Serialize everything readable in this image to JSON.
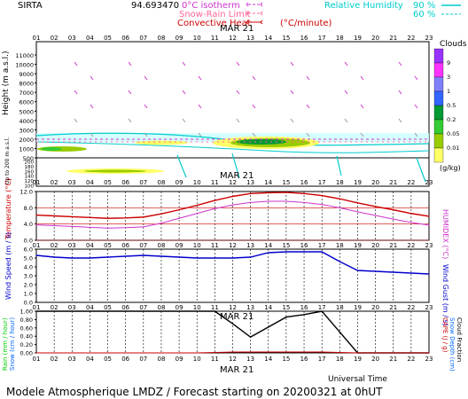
{
  "header": {
    "station": "SIRTA",
    "coords": "94.693470",
    "legend_0c": "0°C isotherm",
    "legend_snow": "Snow-Rain Limit",
    "legend_conv": "Convective Heat",
    "conv_unit": "(°C/minute)",
    "legend_rh": "Relative Humidity",
    "rh_90": "90 %",
    "rh_60": "60 %",
    "date": "MAR 21"
  },
  "hours": [
    "01",
    "02",
    "03",
    "04",
    "05",
    "06",
    "07",
    "08",
    "09",
    "10",
    "11",
    "12",
    "13",
    "14",
    "15",
    "16",
    "17",
    "18",
    "19",
    "20",
    "21",
    "22",
    "23"
  ],
  "top_panel": {
    "ylabel": "Height (m a.s.l.)",
    "ylabel_low": "Up to 200 m a.s.l.",
    "yticks": [
      "11000",
      "10000",
      "9000",
      "8000",
      "7000",
      "6000",
      "5000",
      "4000",
      "3000",
      "2000",
      "1000",
      "500",
      "200",
      "180",
      "160",
      "140",
      "120",
      "100"
    ],
    "clouds_title": "Clouds",
    "clouds_unit": "(g/kg)",
    "cloud_levels": [
      "9",
      "3",
      "1",
      "0.5",
      "0.2",
      "0.05",
      "0.01"
    ],
    "cloud_colors": [
      "#9933ff",
      "#ff33ff",
      "#8080ff",
      "#3366ff",
      "#009933",
      "#33cc33",
      "#99cc00",
      "#ffff66"
    ]
  },
  "chart_data": [
    {
      "type": "line",
      "title": "",
      "xlabel": "MAR 21",
      "ylabel": "Temperature (°C)",
      "ylabel_right": "HUMIDEX (°C)",
      "ylim": [
        0,
        12
      ],
      "yticks": [
        "12.0",
        "8.0",
        "4.0",
        "0.0"
      ],
      "x": [
        1,
        2,
        3,
        4,
        5,
        6,
        7,
        8,
        9,
        10,
        11,
        12,
        13,
        14,
        15,
        16,
        17,
        18,
        19,
        20,
        21,
        22,
        23
      ],
      "series": [
        {
          "color": "#cc0000",
          "values": [
            6.2,
            6.0,
            5.8,
            5.6,
            5.4,
            5.5,
            5.7,
            6.5,
            7.5,
            8.6,
            9.8,
            10.8,
            11.5,
            11.7,
            11.8,
            11.5,
            11.0,
            10.2,
            9.2,
            8.3,
            7.5,
            6.6,
            5.9
          ]
        },
        {
          "color": "#cc33cc",
          "values": [
            3.8,
            3.6,
            3.4,
            3.2,
            3.0,
            3.1,
            3.3,
            4.2,
            5.4,
            6.6,
            7.8,
            8.7,
            9.3,
            9.6,
            9.6,
            9.3,
            8.8,
            8.0,
            7.0,
            6.1,
            5.2,
            4.4,
            3.7
          ]
        }
      ]
    },
    {
      "type": "line",
      "title": "",
      "xlabel": "MAR 21",
      "ylabel": "Wind Speed (m / s)",
      "ylabel_right": "Wind Gust (m / s)",
      "ylim": [
        0,
        6
      ],
      "yticks": [
        "6.0",
        "5.0",
        "4.0",
        "3.0",
        "2.0",
        "1.0",
        "0.0"
      ],
      "x": [
        1,
        2,
        3,
        4,
        5,
        6,
        7,
        8,
        9,
        10,
        11,
        12,
        13,
        14,
        15,
        16,
        17,
        18,
        19,
        20,
        21,
        22,
        23
      ],
      "series": [
        {
          "color": "#0000cc",
          "values": [
            5.3,
            5.1,
            5.0,
            5.0,
            5.1,
            5.2,
            5.3,
            5.2,
            5.1,
            5.0,
            5.0,
            5.0,
            5.1,
            5.6,
            5.7,
            5.7,
            5.7,
            4.6,
            3.6,
            3.5,
            3.4,
            3.3,
            3.2
          ]
        }
      ]
    },
    {
      "type": "line",
      "title": "",
      "xlabel": "Universal Time",
      "ylabel": "Rain (mm / hour)",
      "ylabel2": "Snow (cm / hour)",
      "ylabel_right": "CAPE (J / g)",
      "ylabel_right2": "Snow Depth (cm)",
      "ylabel_right3": "Cloud Fraction",
      "ylim": [
        0,
        1
      ],
      "yticks": [
        "1.00",
        "0.80",
        "0.60",
        "0.40",
        "0.20",
        "0.00"
      ],
      "x": [
        1,
        2,
        3,
        4,
        5,
        6,
        7,
        8,
        9,
        10,
        11,
        12,
        13,
        14,
        15,
        16,
        17,
        18,
        19,
        20,
        21,
        22,
        23
      ],
      "series": [
        {
          "color": "#000000",
          "values": [
            1,
            1,
            1,
            1,
            1,
            1,
            1,
            1,
            1,
            1,
            1,
            0.7,
            0.38,
            0.62,
            0.86,
            0.92,
            1,
            0.5,
            0,
            0,
            0,
            0,
            0
          ]
        },
        {
          "color": "#cc0000",
          "values": [
            0,
            0,
            0,
            0,
            0,
            0,
            0,
            0,
            0,
            0,
            0.01,
            0.02,
            0.02,
            0.02,
            0.02,
            0.02,
            0.02,
            0.01,
            0,
            0,
            0,
            0,
            0
          ]
        }
      ]
    }
  ],
  "footer": {
    "utime": "Universal Time",
    "caption": "Modele Atmospherique LMDZ / Forecast starting on 20200321 at 0hUT"
  }
}
